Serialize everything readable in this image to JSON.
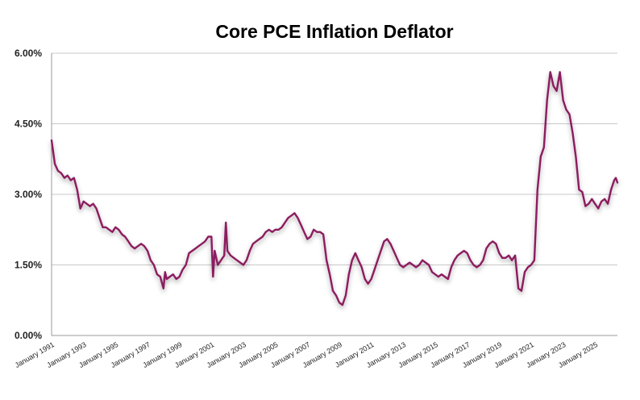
{
  "chart_data": {
    "type": "line",
    "title": "Core PCE Inflation Deflator",
    "xlabel": "",
    "ylabel": "",
    "ylim": [
      0,
      6
    ],
    "yticks": [
      "0.00%",
      "1.50%",
      "3.00%",
      "4.50%",
      "6.00%"
    ],
    "xticks": [
      "January 1991",
      "January 1993",
      "January 1995",
      "January 1997",
      "January 1999",
      "January 2001",
      "January 2003",
      "January 2005",
      "January 2007",
      "January 2009",
      "January 2011",
      "January 2013",
      "January 2015",
      "January 2017",
      "January 2019",
      "January 2021",
      "January 2023",
      "January 2025"
    ],
    "grid": true,
    "legend": "none",
    "line_color": "#8c1c5f",
    "series": [
      {
        "points": [
          [
            1991.0,
            4.15
          ],
          [
            1991.2,
            3.65
          ],
          [
            1991.4,
            3.5
          ],
          [
            1991.6,
            3.45
          ],
          [
            1991.8,
            3.35
          ],
          [
            1992.0,
            3.4
          ],
          [
            1992.2,
            3.3
          ],
          [
            1992.4,
            3.35
          ],
          [
            1992.6,
            3.1
          ],
          [
            1992.8,
            2.7
          ],
          [
            1993.0,
            2.85
          ],
          [
            1993.2,
            2.8
          ],
          [
            1993.4,
            2.75
          ],
          [
            1993.6,
            2.8
          ],
          [
            1993.8,
            2.7
          ],
          [
            1994.0,
            2.5
          ],
          [
            1994.2,
            2.3
          ],
          [
            1994.4,
            2.3
          ],
          [
            1994.6,
            2.25
          ],
          [
            1994.8,
            2.2
          ],
          [
            1995.0,
            2.3
          ],
          [
            1995.2,
            2.25
          ],
          [
            1995.4,
            2.15
          ],
          [
            1995.6,
            2.1
          ],
          [
            1995.8,
            2.0
          ],
          [
            1996.0,
            1.9
          ],
          [
            1996.2,
            1.85
          ],
          [
            1996.4,
            1.9
          ],
          [
            1996.6,
            1.95
          ],
          [
            1996.8,
            1.9
          ],
          [
            1997.0,
            1.8
          ],
          [
            1997.2,
            1.6
          ],
          [
            1997.4,
            1.5
          ],
          [
            1997.6,
            1.3
          ],
          [
            1997.8,
            1.25
          ],
          [
            1998.0,
            1.0
          ],
          [
            1998.1,
            1.35
          ],
          [
            1998.2,
            1.2
          ],
          [
            1998.4,
            1.25
          ],
          [
            1998.6,
            1.3
          ],
          [
            1998.8,
            1.2
          ],
          [
            1999.0,
            1.25
          ],
          [
            1999.2,
            1.4
          ],
          [
            1999.4,
            1.5
          ],
          [
            1999.6,
            1.75
          ],
          [
            1999.8,
            1.8
          ],
          [
            2000.0,
            1.85
          ],
          [
            2000.2,
            1.9
          ],
          [
            2000.4,
            1.95
          ],
          [
            2000.6,
            2.0
          ],
          [
            2000.8,
            2.1
          ],
          [
            2001.0,
            2.1
          ],
          [
            2001.1,
            1.25
          ],
          [
            2001.2,
            1.8
          ],
          [
            2001.4,
            1.5
          ],
          [
            2001.6,
            1.6
          ],
          [
            2001.8,
            1.7
          ],
          [
            2001.9,
            2.4
          ],
          [
            2002.0,
            1.8
          ],
          [
            2002.2,
            1.7
          ],
          [
            2002.4,
            1.65
          ],
          [
            2002.6,
            1.6
          ],
          [
            2002.8,
            1.55
          ],
          [
            2003.0,
            1.5
          ],
          [
            2003.2,
            1.6
          ],
          [
            2003.4,
            1.8
          ],
          [
            2003.6,
            1.95
          ],
          [
            2003.8,
            2.0
          ],
          [
            2004.0,
            2.05
          ],
          [
            2004.2,
            2.1
          ],
          [
            2004.4,
            2.2
          ],
          [
            2004.6,
            2.25
          ],
          [
            2004.8,
            2.2
          ],
          [
            2005.0,
            2.25
          ],
          [
            2005.2,
            2.25
          ],
          [
            2005.4,
            2.3
          ],
          [
            2005.6,
            2.4
          ],
          [
            2005.8,
            2.5
          ],
          [
            2006.0,
            2.55
          ],
          [
            2006.2,
            2.6
          ],
          [
            2006.4,
            2.5
          ],
          [
            2006.6,
            2.35
          ],
          [
            2006.8,
            2.2
          ],
          [
            2007.0,
            2.05
          ],
          [
            2007.2,
            2.1
          ],
          [
            2007.4,
            2.25
          ],
          [
            2007.6,
            2.2
          ],
          [
            2007.8,
            2.2
          ],
          [
            2008.0,
            2.15
          ],
          [
            2008.2,
            1.6
          ],
          [
            2008.4,
            1.3
          ],
          [
            2008.6,
            0.95
          ],
          [
            2008.8,
            0.85
          ],
          [
            2009.0,
            0.7
          ],
          [
            2009.2,
            0.65
          ],
          [
            2009.4,
            0.85
          ],
          [
            2009.6,
            1.3
          ],
          [
            2009.8,
            1.6
          ],
          [
            2010.0,
            1.75
          ],
          [
            2010.2,
            1.6
          ],
          [
            2010.4,
            1.45
          ],
          [
            2010.6,
            1.2
          ],
          [
            2010.8,
            1.1
          ],
          [
            2011.0,
            1.2
          ],
          [
            2011.2,
            1.4
          ],
          [
            2011.4,
            1.6
          ],
          [
            2011.6,
            1.8
          ],
          [
            2011.8,
            2.0
          ],
          [
            2012.0,
            2.05
          ],
          [
            2012.2,
            1.95
          ],
          [
            2012.4,
            1.8
          ],
          [
            2012.6,
            1.65
          ],
          [
            2012.8,
            1.5
          ],
          [
            2013.0,
            1.45
          ],
          [
            2013.2,
            1.5
          ],
          [
            2013.4,
            1.55
          ],
          [
            2013.6,
            1.5
          ],
          [
            2013.8,
            1.45
          ],
          [
            2014.0,
            1.5
          ],
          [
            2014.2,
            1.6
          ],
          [
            2014.4,
            1.55
          ],
          [
            2014.6,
            1.5
          ],
          [
            2014.8,
            1.35
          ],
          [
            2015.0,
            1.3
          ],
          [
            2015.2,
            1.25
          ],
          [
            2015.4,
            1.3
          ],
          [
            2015.6,
            1.25
          ],
          [
            2015.8,
            1.2
          ],
          [
            2016.0,
            1.45
          ],
          [
            2016.2,
            1.6
          ],
          [
            2016.4,
            1.7
          ],
          [
            2016.6,
            1.75
          ],
          [
            2016.8,
            1.8
          ],
          [
            2017.0,
            1.75
          ],
          [
            2017.2,
            1.6
          ],
          [
            2017.4,
            1.5
          ],
          [
            2017.6,
            1.45
          ],
          [
            2017.8,
            1.5
          ],
          [
            2018.0,
            1.6
          ],
          [
            2018.2,
            1.85
          ],
          [
            2018.4,
            1.95
          ],
          [
            2018.6,
            2.0
          ],
          [
            2018.8,
            1.95
          ],
          [
            2019.0,
            1.75
          ],
          [
            2019.2,
            1.65
          ],
          [
            2019.4,
            1.65
          ],
          [
            2019.6,
            1.7
          ],
          [
            2019.8,
            1.6
          ],
          [
            2020.0,
            1.7
          ],
          [
            2020.2,
            1.0
          ],
          [
            2020.4,
            0.95
          ],
          [
            2020.6,
            1.35
          ],
          [
            2020.8,
            1.45
          ],
          [
            2021.0,
            1.5
          ],
          [
            2021.2,
            1.6
          ],
          [
            2021.4,
            3.1
          ],
          [
            2021.6,
            3.8
          ],
          [
            2021.8,
            4.0
          ],
          [
            2022.0,
            5.0
          ],
          [
            2022.2,
            5.6
          ],
          [
            2022.4,
            5.3
          ],
          [
            2022.6,
            5.2
          ],
          [
            2022.8,
            5.6
          ],
          [
            2023.0,
            5.0
          ],
          [
            2023.2,
            4.8
          ],
          [
            2023.4,
            4.7
          ],
          [
            2023.6,
            4.3
          ],
          [
            2023.8,
            3.8
          ],
          [
            2024.0,
            3.1
          ],
          [
            2024.2,
            3.05
          ],
          [
            2024.4,
            2.75
          ],
          [
            2024.6,
            2.8
          ],
          [
            2024.8,
            2.9
          ],
          [
            2025.0,
            2.8
          ],
          [
            2025.2,
            2.7
          ],
          [
            2025.4,
            2.85
          ],
          [
            2025.6,
            2.9
          ],
          [
            2025.8,
            2.8
          ],
          [
            2026.0,
            3.1
          ],
          [
            2026.2,
            3.3
          ],
          [
            2026.3,
            3.35
          ],
          [
            2026.4,
            3.25
          ]
        ]
      }
    ]
  }
}
